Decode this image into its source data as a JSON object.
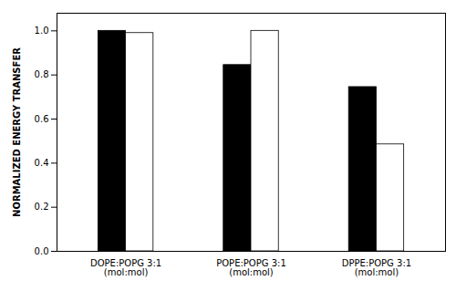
{
  "chart_data": {
    "type": "bar",
    "categories": [
      "DOPE:POPG 3:1\n(mol:mol)",
      "POPE:POPG 3:1\n(mol:mol)",
      "DPPE:POPG 3:1\n(mol:mol)"
    ],
    "series": [
      {
        "color": "#000000",
        "values": [
          1.0,
          0.845,
          0.745
        ]
      },
      {
        "color": "#ffffff",
        "values": [
          0.99,
          1.0,
          0.485
        ]
      }
    ],
    "ylabel": "NORMALIZED ENERGY TRANSFER",
    "ylim": [
      0.0,
      1.08
    ],
    "yticks": [
      {
        "value": 0.0,
        "label": "0.0"
      },
      0.2,
      0.4,
      0.6,
      0.8,
      {
        "value": 1.0,
        "label": "1.0"
      }
    ],
    "grid": false
  }
}
